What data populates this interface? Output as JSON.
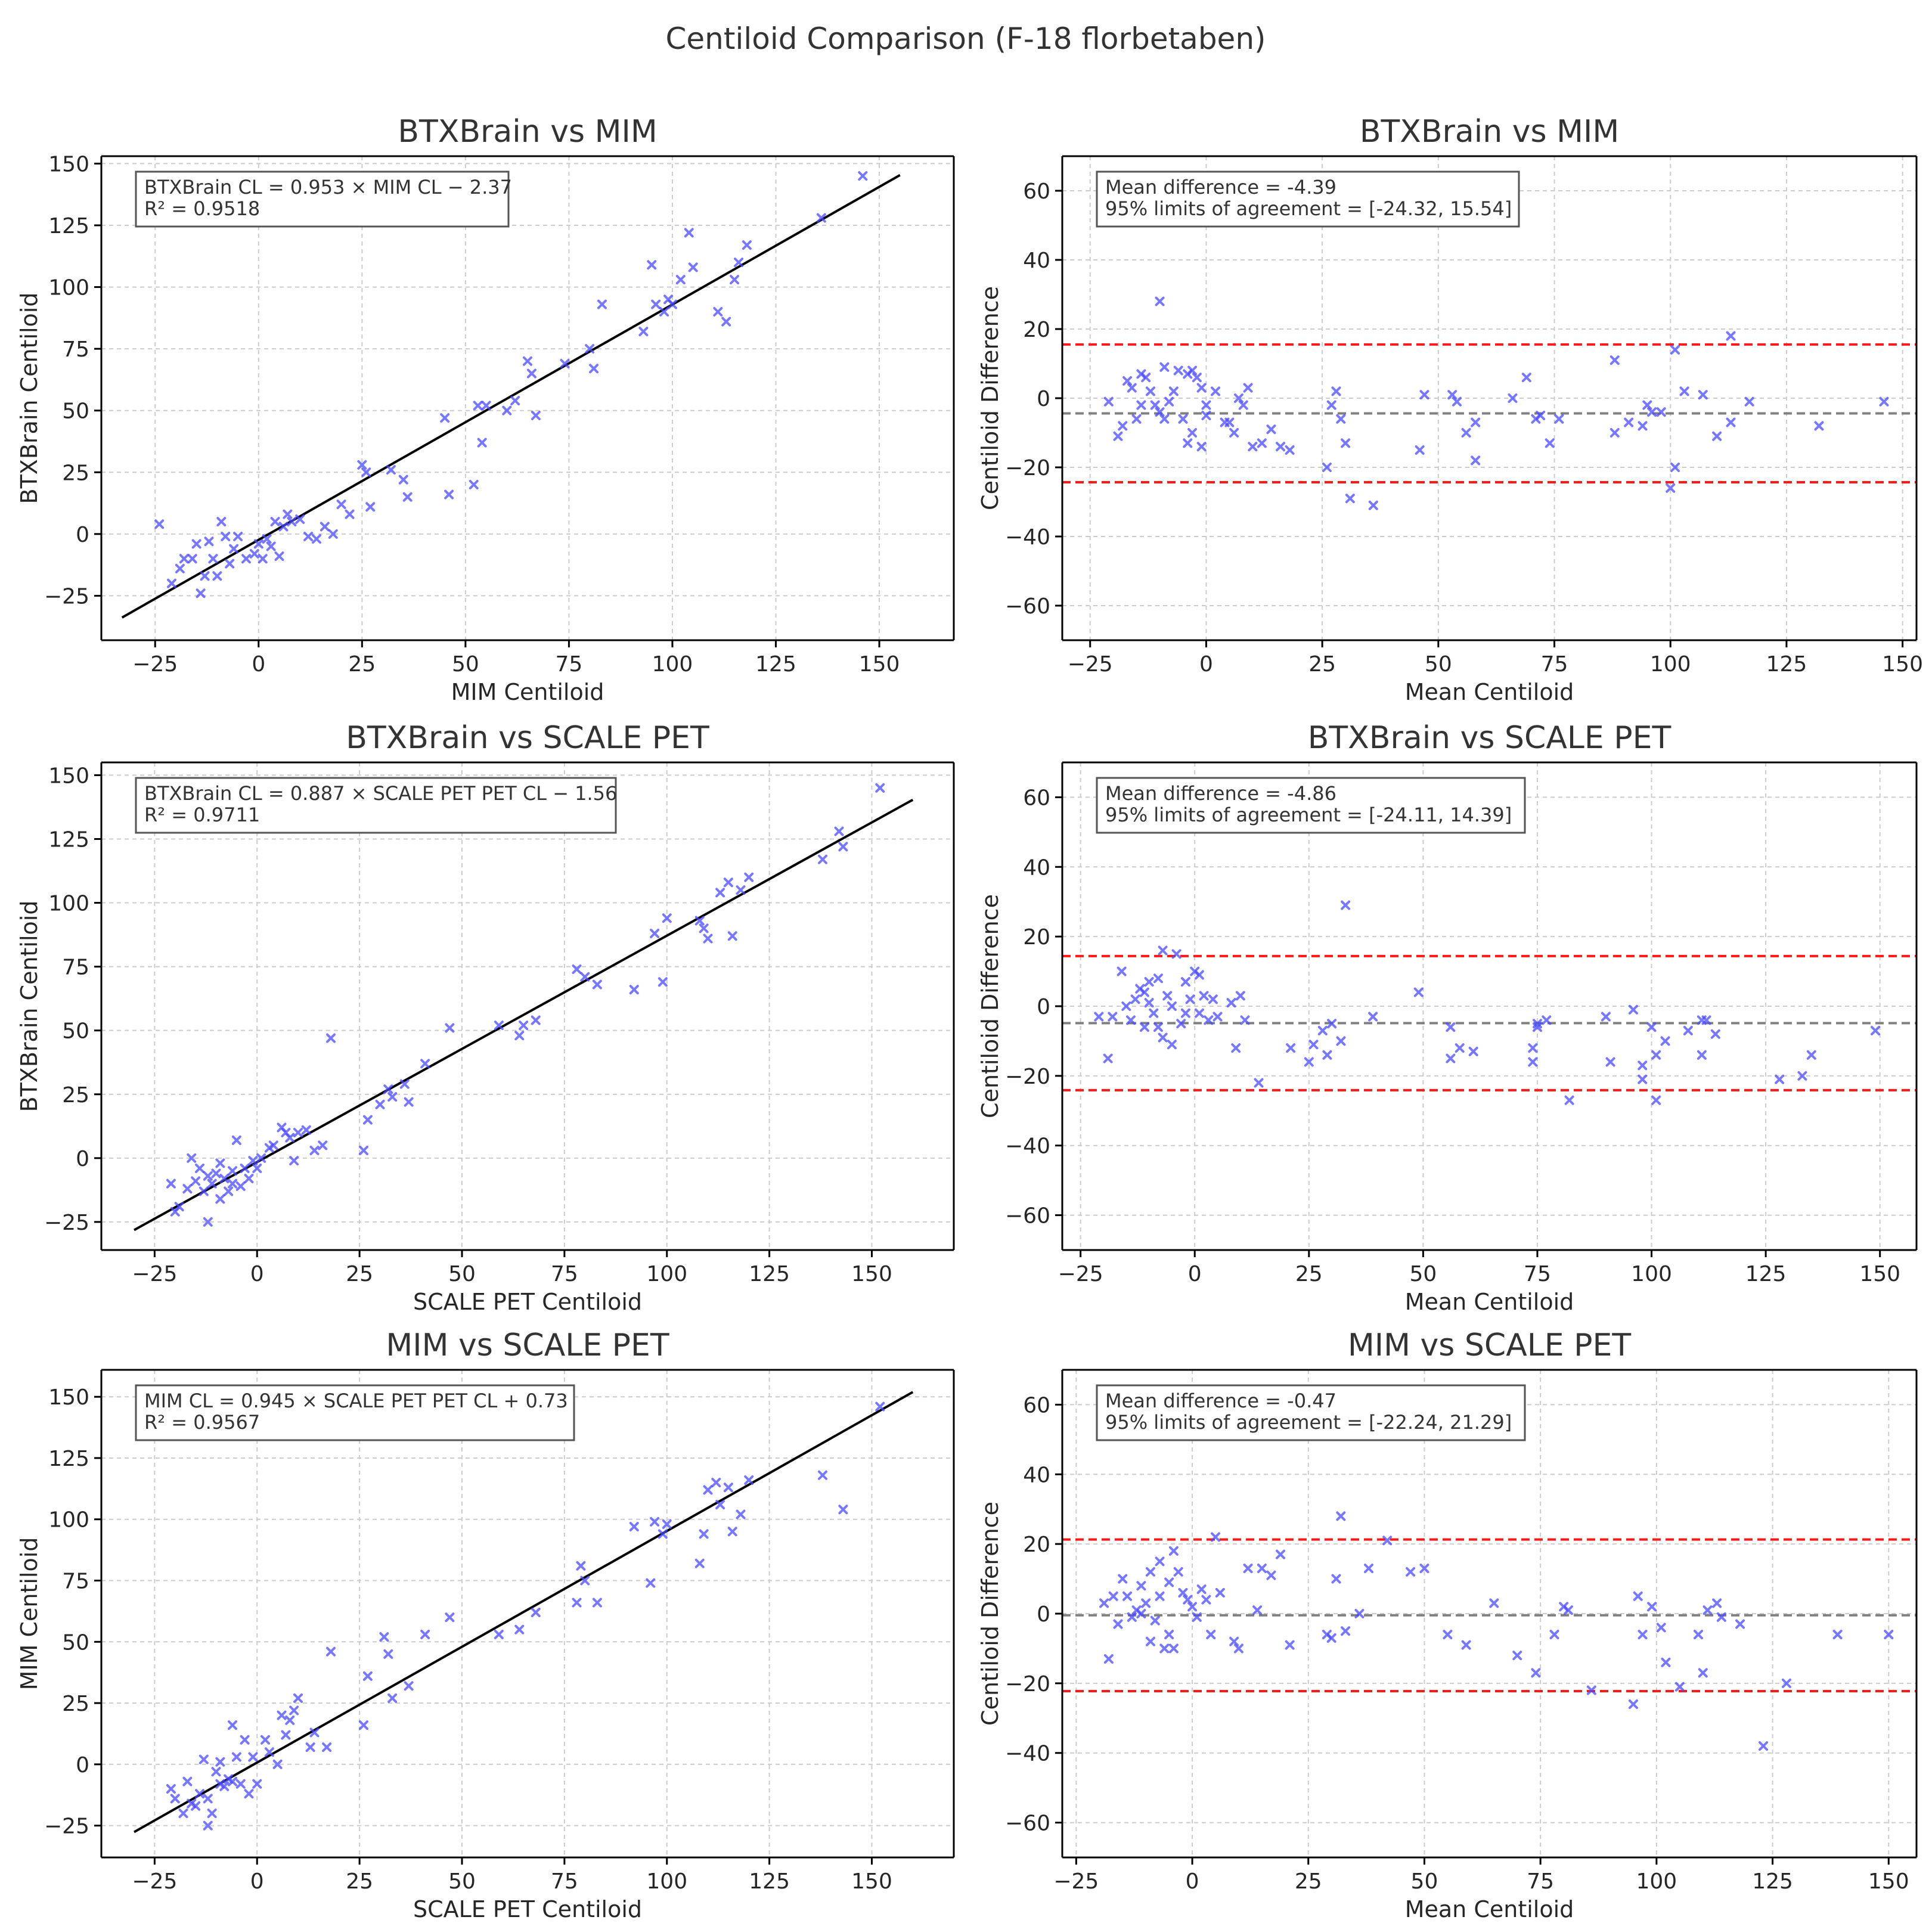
{
  "figure_title": "Centiloid Comparison (F-18 florbetaben)",
  "chart_data": [
    {
      "type": "scatter",
      "title": "BTXBrain vs MIM",
      "xlabel": "MIM Centiloid",
      "ylabel": "BTXBrain Centiloid",
      "xlim": [
        -38,
        168
      ],
      "ylim": [
        -43,
        153
      ],
      "xticks": [
        -25,
        0,
        25,
        50,
        75,
        100,
        125,
        150
      ],
      "yticks": [
        -25,
        0,
        25,
        50,
        75,
        100,
        125,
        150
      ],
      "xtick_labels": [
        "−25",
        "0",
        "25",
        "50",
        "75",
        "100",
        "125",
        "150"
      ],
      "ytick_labels": [
        "−25",
        "0",
        "25",
        "50",
        "75",
        "100",
        "125",
        "150"
      ],
      "fit": {
        "slope": 0.953,
        "intercept": -2.37,
        "x_range": [
          -33,
          155
        ]
      },
      "annotation_lines": [
        "BTXBrain CL = 0.953 × MIM CL − 2.37",
        "R² = 0.9518"
      ],
      "x": [
        -24,
        -21,
        -19,
        -18,
        -16,
        -15,
        -14,
        -13,
        -12,
        -11,
        -10,
        -9,
        -8,
        -7,
        -6,
        -5,
        -3,
        -1,
        0,
        1,
        2,
        3,
        4,
        5,
        6,
        7,
        8,
        10,
        12,
        14,
        16,
        18,
        20,
        22,
        25,
        26,
        27,
        32,
        35,
        36,
        45,
        46,
        52,
        53,
        54,
        55,
        60,
        62,
        65,
        66,
        67,
        74,
        80,
        81,
        83,
        93,
        95,
        96,
        98,
        99,
        100,
        102,
        104,
        105,
        111,
        113,
        115,
        116,
        118,
        136,
        146
      ],
      "y": [
        4,
        -20,
        -14,
        -10,
        -10,
        -4,
        -24,
        -17,
        -3,
        -10,
        -17,
        5,
        -1,
        -12,
        -6,
        -1,
        -10,
        -8,
        -4,
        -10,
        -2,
        -5,
        5,
        -9,
        3,
        8,
        5,
        6,
        -1,
        -2,
        3,
        0,
        12,
        8,
        28,
        25,
        11,
        26,
        22,
        15,
        47,
        16,
        20,
        52,
        37,
        52,
        50,
        54,
        70,
        65,
        48,
        69,
        75,
        67,
        93,
        82,
        109,
        93,
        90,
        95,
        93,
        103,
        122,
        108,
        90,
        86,
        103,
        110,
        117,
        128,
        145
      ]
    },
    {
      "type": "scatter",
      "title": "BTXBrain vs MIM",
      "xlabel": "Mean Centiloid",
      "ylabel": "Centiloid Difference",
      "xlim": [
        -31,
        153
      ],
      "ylim": [
        -70,
        70
      ],
      "xticks": [
        -25,
        0,
        25,
        50,
        75,
        100,
        125,
        150
      ],
      "yticks": [
        -60,
        -40,
        -20,
        0,
        20,
        40,
        60
      ],
      "xtick_labels": [
        "−25",
        "0",
        "25",
        "50",
        "75",
        "100",
        "125",
        "150"
      ],
      "ytick_labels": [
        "−60",
        "−40",
        "−20",
        "0",
        "20",
        "40",
        "60"
      ],
      "mean_difference": -4.39,
      "limits_of_agreement": [
        -24.32,
        15.54
      ],
      "annotation_lines": [
        "Mean difference = -4.39",
        "95% limits of agreement = [-24.32, 15.54]"
      ],
      "x": [
        -21,
        -19,
        -18,
        -17,
        -16,
        -15,
        -14,
        -14,
        -13,
        -12,
        -11,
        -10,
        -10,
        -9,
        -9,
        -8,
        -7,
        -6,
        -5,
        -4,
        -4,
        -3,
        -3,
        -2,
        -1,
        -1,
        0,
        0,
        2,
        4,
        5,
        6,
        7,
        8,
        9,
        10,
        12,
        14,
        16,
        18,
        26,
        27,
        28,
        29,
        30,
        31,
        36,
        46,
        47,
        53,
        54,
        56,
        58,
        58,
        66,
        69,
        71,
        72,
        74,
        76,
        88,
        88,
        91,
        94,
        95,
        96,
        98,
        100,
        101,
        101,
        103,
        107,
        110,
        113,
        113,
        117,
        132,
        146
      ],
      "y": [
        -1,
        -11,
        -8,
        5,
        3,
        -6,
        7,
        -2,
        6,
        2,
        -2,
        28,
        -4,
        -6,
        9,
        -1,
        2,
        8,
        -6,
        7,
        -13,
        8,
        -10,
        6,
        -14,
        3,
        -2,
        -5,
        2,
        -7,
        -7,
        -10,
        0,
        -2,
        3,
        -14,
        -13,
        -9,
        -14,
        -15,
        -20,
        -2,
        2,
        -6,
        -13,
        -29,
        -31,
        -15,
        1,
        1,
        -1,
        -10,
        -18,
        -7,
        0,
        6,
        -6,
        -5,
        -13,
        -6,
        11,
        -10,
        -7,
        -8,
        -2,
        -4,
        -4,
        -26,
        -20,
        14,
        2,
        1,
        -11,
        18,
        -7,
        -1,
        -8,
        -1
      ]
    },
    {
      "type": "scatter",
      "title": "BTXBrain vs SCALE PET",
      "xlabel": "SCALE PET Centiloid",
      "ylabel": "BTXBrain Centiloid",
      "xlim": [
        -38,
        170
      ],
      "ylim": [
        -36,
        155
      ],
      "xticks": [
        -25,
        0,
        25,
        50,
        75,
        100,
        125,
        150
      ],
      "yticks": [
        -25,
        0,
        25,
        50,
        75,
        100,
        125,
        150
      ],
      "xtick_labels": [
        "−25",
        "0",
        "25",
        "50",
        "75",
        "100",
        "125",
        "150"
      ],
      "ytick_labels": [
        "−25",
        "0",
        "25",
        "50",
        "75",
        "100",
        "125",
        "150"
      ],
      "fit": {
        "slope": 0.887,
        "intercept": -1.56,
        "x_range": [
          -30,
          160
        ]
      },
      "annotation_lines": [
        "BTXBrain CL = 0.887 × SCALE PET PET CL − 1.56",
        "R² = 0.9711"
      ],
      "x": [
        -21,
        -20,
        -19,
        -17,
        -16,
        -15,
        -14,
        -13,
        -12,
        -12,
        -11,
        -10,
        -9,
        -9,
        -8,
        -7,
        -6,
        -6,
        -5,
        -4,
        -3,
        -2,
        -1,
        0,
        1,
        3,
        4,
        6,
        7,
        8,
        9,
        10,
        12,
        14,
        16,
        18,
        26,
        27,
        30,
        32,
        33,
        36,
        37,
        41,
        47,
        59,
        64,
        65,
        68,
        78,
        80,
        83,
        92,
        97,
        99,
        100,
        108,
        109,
        110,
        113,
        115,
        116,
        118,
        120,
        138,
        142,
        143,
        152
      ],
      "y": [
        -10,
        -21,
        -19,
        -12,
        0,
        -9,
        -4,
        -13,
        -7,
        -25,
        -10,
        -6,
        -2,
        -16,
        -8,
        -13,
        -5,
        -10,
        7,
        -11,
        -4,
        -8,
        -1,
        -4,
        0,
        4,
        5,
        12,
        10,
        8,
        -1,
        10,
        11,
        3,
        5,
        47,
        3,
        15,
        21,
        27,
        24,
        29,
        22,
        37,
        51,
        52,
        48,
        52,
        54,
        74,
        71,
        68,
        66,
        88,
        69,
        94,
        93,
        90,
        86,
        104,
        108,
        87,
        105,
        110,
        117,
        128,
        122,
        145
      ]
    },
    {
      "type": "scatter",
      "title": "BTXBrain vs SCALE PET",
      "xlabel": "Mean Centiloid",
      "ylabel": "Centiloid Difference",
      "xlim": [
        -29,
        158
      ],
      "ylim": [
        -70,
        70
      ],
      "xticks": [
        -25,
        0,
        25,
        50,
        75,
        100,
        125,
        150
      ],
      "yticks": [
        -60,
        -40,
        -20,
        0,
        20,
        40,
        60
      ],
      "xtick_labels": [
        "−25",
        "0",
        "25",
        "50",
        "75",
        "100",
        "125",
        "150"
      ],
      "ytick_labels": [
        "−60",
        "−40",
        "−20",
        "0",
        "20",
        "40",
        "60"
      ],
      "mean_difference": -4.86,
      "limits_of_agreement": [
        -24.11,
        14.39
      ],
      "annotation_lines": [
        "Mean difference = -4.86",
        "95% limits of agreement = [-24.11, 14.39]"
      ],
      "x": [
        -21,
        -19,
        -18,
        -16,
        -15,
        -14,
        -13,
        -12,
        -11,
        -11,
        -10,
        -10,
        -9,
        -8,
        -8,
        -7,
        -7,
        -6,
        -5,
        -5,
        -4,
        -3,
        -2,
        -2,
        -1,
        0,
        1,
        1,
        2,
        3,
        4,
        5,
        8,
        9,
        10,
        11,
        14,
        21,
        25,
        26,
        28,
        29,
        30,
        32,
        33,
        39,
        49,
        56,
        56,
        58,
        61,
        74,
        74,
        75,
        75,
        77,
        82,
        90,
        91,
        96,
        98,
        98,
        100,
        101,
        101,
        103,
        108,
        111,
        111,
        112,
        114,
        128,
        133,
        135,
        149
      ],
      "y": [
        -3,
        -15,
        -3,
        10,
        0,
        -4,
        2,
        5,
        4,
        -6,
        7,
        1,
        -2,
        8,
        -6,
        -9,
        16,
        3,
        -11,
        0,
        15,
        -5,
        -2,
        7,
        2,
        10,
        -2,
        9,
        3,
        -4,
        2,
        -3,
        1,
        -12,
        3,
        -4,
        -22,
        -12,
        -16,
        -11,
        -7,
        -14,
        -5,
        -10,
        29,
        -3,
        4,
        -15,
        -6,
        -12,
        -13,
        -12,
        -16,
        -6,
        -5,
        -4,
        -27,
        -3,
        -16,
        -1,
        -21,
        -17,
        -6,
        -14,
        -27,
        -10,
        -7,
        -14,
        -4,
        -4,
        -8,
        -21,
        -20,
        -14,
        -7
      ]
    },
    {
      "type": "scatter",
      "title": "MIM vs SCALE PET",
      "xlabel": "SCALE PET Centiloid",
      "ylabel": "MIM Centiloid",
      "xlim": [
        -38,
        170
      ],
      "ylim": [
        -38,
        161
      ],
      "xticks": [
        -25,
        0,
        25,
        50,
        75,
        100,
        125,
        150
      ],
      "yticks": [
        -25,
        0,
        25,
        50,
        75,
        100,
        125,
        150
      ],
      "xtick_labels": [
        "−25",
        "0",
        "25",
        "50",
        "75",
        "100",
        "125",
        "150"
      ],
      "ytick_labels": [
        "−25",
        "0",
        "25",
        "50",
        "75",
        "100",
        "125",
        "150"
      ],
      "fit": {
        "slope": 0.945,
        "intercept": 0.73,
        "x_range": [
          -30,
          160
        ]
      },
      "annotation_lines": [
        "MIM CL = 0.945 × SCALE PET PET CL + 0.73",
        "R² = 0.9567"
      ],
      "x": [
        -21,
        -20,
        -18,
        -17,
        -16,
        -15,
        -14,
        -13,
        -12,
        -12,
        -11,
        -10,
        -9,
        -9,
        -8,
        -7,
        -6,
        -6,
        -5,
        -4,
        -3,
        -2,
        -1,
        0,
        2,
        3,
        5,
        6,
        7,
        8,
        9,
        10,
        13,
        14,
        17,
        18,
        26,
        27,
        31,
        32,
        33,
        37,
        41,
        47,
        59,
        64,
        68,
        78,
        79,
        80,
        83,
        92,
        96,
        97,
        99,
        100,
        108,
        109,
        110,
        112,
        113,
        115,
        116,
        118,
        120,
        138,
        143,
        152
      ],
      "y": [
        -10,
        -14,
        -20,
        -7,
        -16,
        -17,
        -12,
        2,
        -25,
        -14,
        -20,
        -3,
        -8,
        1,
        -9,
        -6,
        16,
        -7,
        3,
        -8,
        10,
        -12,
        3,
        -8,
        10,
        5,
        0,
        20,
        12,
        18,
        22,
        27,
        7,
        13,
        7,
        46,
        16,
        36,
        52,
        45,
        27,
        32,
        53,
        60,
        53,
        55,
        62,
        66,
        81,
        75,
        66,
        97,
        74,
        99,
        94,
        98,
        82,
        94,
        112,
        115,
        106,
        113,
        95,
        102,
        116,
        118,
        104,
        146
      ]
    },
    {
      "type": "scatter",
      "title": "MIM vs SCALE PET",
      "xlabel": "Mean Centiloid",
      "ylabel": "Centiloid Difference",
      "xlim": [
        -28,
        156
      ],
      "ylim": [
        -70,
        70
      ],
      "xticks": [
        -25,
        0,
        25,
        50,
        75,
        100,
        125,
        150
      ],
      "yticks": [
        -60,
        -40,
        -20,
        0,
        20,
        40,
        60
      ],
      "xtick_labels": [
        "−25",
        "0",
        "25",
        "50",
        "75",
        "100",
        "125",
        "150"
      ],
      "ytick_labels": [
        "−60",
        "−40",
        "−20",
        "0",
        "20",
        "40",
        "60"
      ],
      "mean_difference": -0.47,
      "limits_of_agreement": [
        -22.24,
        21.29
      ],
      "annotation_lines": [
        "Mean difference = -0.47",
        "95% limits of agreement = [-22.24, 21.29]"
      ],
      "x": [
        -19,
        -18,
        -17,
        -16,
        -15,
        -14,
        -13,
        -12,
        -11,
        -11,
        -10,
        -9,
        -9,
        -8,
        -7,
        -7,
        -6,
        -5,
        -5,
        -4,
        -4,
        -3,
        -2,
        -1,
        0,
        1,
        2,
        3,
        4,
        5,
        6,
        9,
        10,
        12,
        14,
        15,
        17,
        19,
        21,
        29,
        30,
        31,
        32,
        33,
        36,
        38,
        42,
        47,
        50,
        55,
        59,
        65,
        70,
        74,
        78,
        80,
        81,
        86,
        95,
        96,
        97,
        99,
        101,
        102,
        105,
        109,
        110,
        111,
        113,
        114,
        118,
        123,
        128,
        139,
        150
      ],
      "y": [
        3,
        -13,
        5,
        -3,
        10,
        5,
        -1,
        1,
        0,
        8,
        3,
        -8,
        12,
        -2,
        15,
        5,
        -10,
        9,
        -6,
        18,
        -10,
        12,
        6,
        4,
        2,
        -1,
        7,
        4,
        -6,
        22,
        6,
        -8,
        -10,
        13,
        1,
        13,
        11,
        17,
        -9,
        -6,
        -7,
        10,
        28,
        -5,
        0,
        13,
        21,
        12,
        13,
        -6,
        -9,
        3,
        -12,
        -17,
        -6,
        2,
        1,
        -22,
        -26,
        5,
        -6,
        2,
        -4,
        -14,
        -21,
        -6,
        -17,
        1,
        3,
        -1,
        -3,
        -38,
        -20,
        -6,
        -6
      ]
    }
  ]
}
